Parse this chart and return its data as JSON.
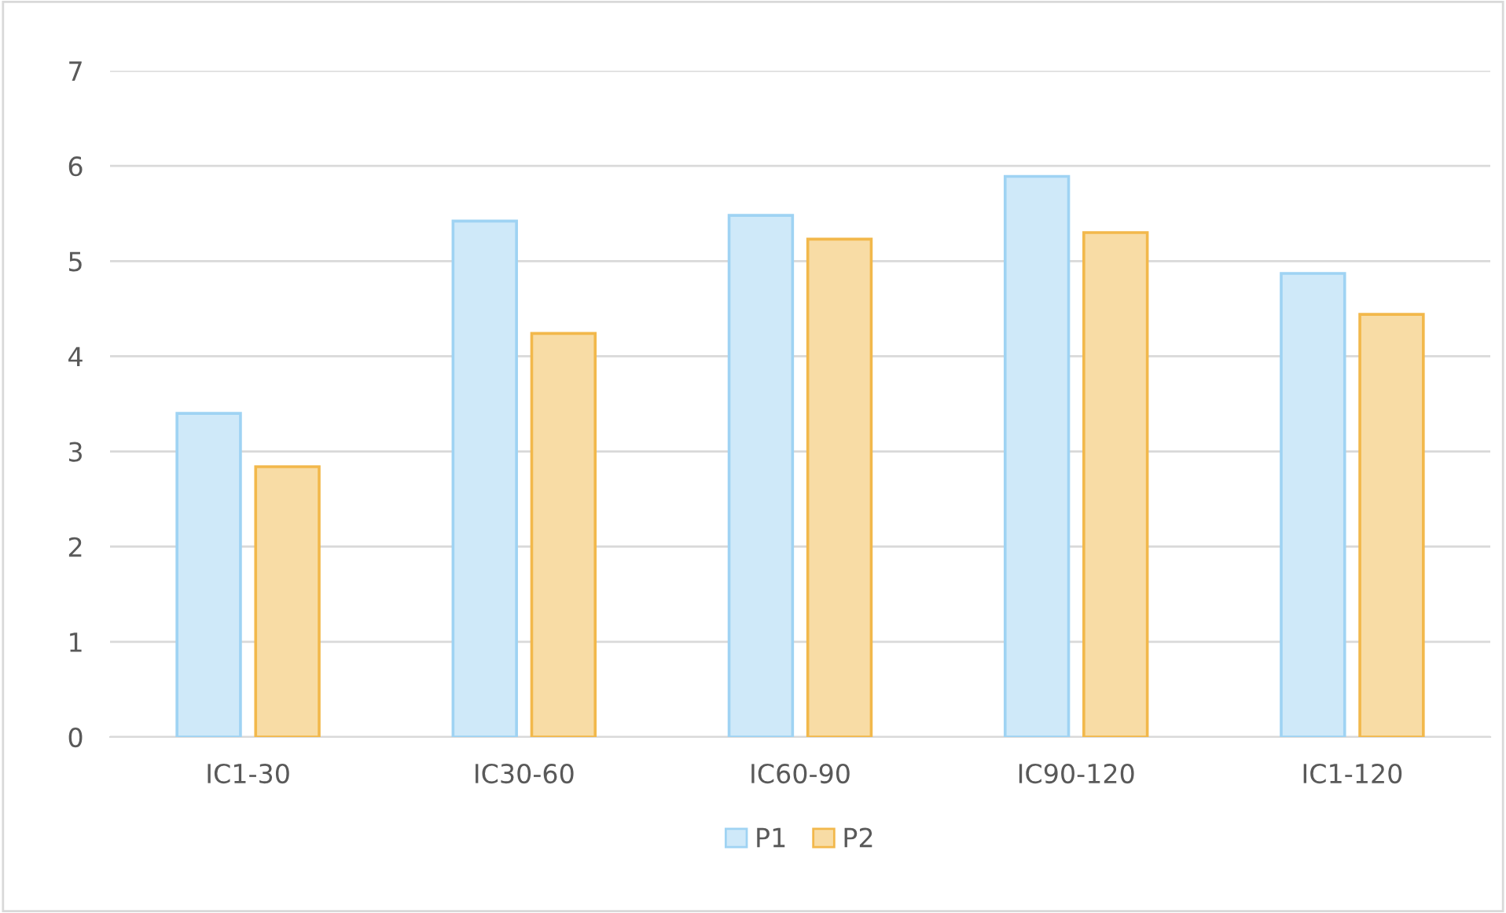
{
  "chart_data": {
    "type": "bar",
    "categories": [
      "IC1-30",
      "IC30-60",
      "IC60-90",
      "IC90-120",
      "IC1-120"
    ],
    "series": [
      {
        "name": "P1",
        "color": "#9fd3f3",
        "values": [
          3.4,
          5.42,
          5.48,
          5.89,
          4.87
        ]
      },
      {
        "name": "P2",
        "color": "#f2b84b",
        "values": [
          2.84,
          4.24,
          5.23,
          5.3,
          4.44
        ]
      }
    ],
    "ylim": [
      0,
      7
    ],
    "yticks": [
      0,
      1,
      2,
      3,
      4,
      5,
      6,
      7
    ],
    "grid": "y",
    "legend": "bottom"
  }
}
